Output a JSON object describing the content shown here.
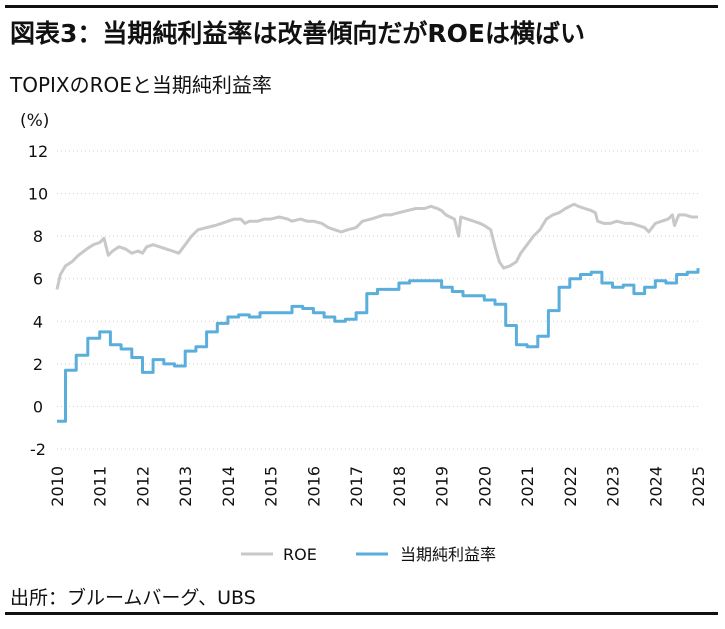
{
  "figure_title": "図表3：当期純利益率は改善傾向だがROEは横ばい",
  "source": "出所：ブルームバーグ、UBS",
  "colors": {
    "roe": "#c8c8c8",
    "margin": "#5aaedc",
    "grid": "#cfcfcf",
    "text": "#111111"
  },
  "chart_data": {
    "type": "line",
    "title": "TOPIXのROEと当期純利益率",
    "ylabel": "(%)",
    "xlabel": "",
    "ylim": [
      -2,
      12
    ],
    "yticks": [
      -2,
      0,
      2,
      4,
      6,
      8,
      10,
      12
    ],
    "xlim": [
      2010,
      2025
    ],
    "xticks": [
      2010,
      2011,
      2012,
      2013,
      2014,
      2015,
      2016,
      2017,
      2018,
      2019,
      2020,
      2021,
      2022,
      2023,
      2024,
      2025
    ],
    "grid": true,
    "legend_position": "bottom-center",
    "series": [
      {
        "name": "ROE",
        "step": false,
        "points": [
          [
            2010.0,
            5.5
          ],
          [
            2010.08,
            6.2
          ],
          [
            2010.2,
            6.6
          ],
          [
            2010.35,
            6.8
          ],
          [
            2010.5,
            7.1
          ],
          [
            2010.7,
            7.4
          ],
          [
            2010.85,
            7.6
          ],
          [
            2011.0,
            7.7
          ],
          [
            2011.1,
            7.9
          ],
          [
            2011.2,
            7.1
          ],
          [
            2011.3,
            7.3
          ],
          [
            2011.45,
            7.5
          ],
          [
            2011.6,
            7.4
          ],
          [
            2011.75,
            7.2
          ],
          [
            2011.9,
            7.3
          ],
          [
            2012.0,
            7.2
          ],
          [
            2012.1,
            7.5
          ],
          [
            2012.25,
            7.6
          ],
          [
            2012.4,
            7.5
          ],
          [
            2012.55,
            7.4
          ],
          [
            2012.7,
            7.3
          ],
          [
            2012.85,
            7.2
          ],
          [
            2013.0,
            7.6
          ],
          [
            2013.15,
            8.0
          ],
          [
            2013.3,
            8.3
          ],
          [
            2013.5,
            8.4
          ],
          [
            2013.7,
            8.5
          ],
          [
            2013.85,
            8.6
          ],
          [
            2014.0,
            8.7
          ],
          [
            2014.15,
            8.8
          ],
          [
            2014.3,
            8.8
          ],
          [
            2014.4,
            8.6
          ],
          [
            2014.5,
            8.7
          ],
          [
            2014.7,
            8.7
          ],
          [
            2014.85,
            8.8
          ],
          [
            2015.0,
            8.8
          ],
          [
            2015.2,
            8.9
          ],
          [
            2015.4,
            8.8
          ],
          [
            2015.5,
            8.7
          ],
          [
            2015.7,
            8.8
          ],
          [
            2015.85,
            8.7
          ],
          [
            2016.0,
            8.7
          ],
          [
            2016.2,
            8.6
          ],
          [
            2016.35,
            8.4
          ],
          [
            2016.5,
            8.3
          ],
          [
            2016.65,
            8.2
          ],
          [
            2016.8,
            8.3
          ],
          [
            2017.0,
            8.4
          ],
          [
            2017.15,
            8.7
          ],
          [
            2017.35,
            8.8
          ],
          [
            2017.5,
            8.9
          ],
          [
            2017.65,
            9.0
          ],
          [
            2017.8,
            9.0
          ],
          [
            2018.0,
            9.1
          ],
          [
            2018.2,
            9.2
          ],
          [
            2018.4,
            9.3
          ],
          [
            2018.6,
            9.3
          ],
          [
            2018.75,
            9.4
          ],
          [
            2018.9,
            9.3
          ],
          [
            2019.0,
            9.2
          ],
          [
            2019.1,
            9.0
          ],
          [
            2019.2,
            8.9
          ],
          [
            2019.3,
            8.8
          ],
          [
            2019.4,
            8.0
          ],
          [
            2019.45,
            8.9
          ],
          [
            2019.6,
            8.8
          ],
          [
            2019.75,
            8.7
          ],
          [
            2019.9,
            8.6
          ],
          [
            2020.0,
            8.5
          ],
          [
            2020.15,
            8.3
          ],
          [
            2020.25,
            7.5
          ],
          [
            2020.35,
            6.8
          ],
          [
            2020.45,
            6.5
          ],
          [
            2020.6,
            6.6
          ],
          [
            2020.75,
            6.8
          ],
          [
            2020.85,
            7.2
          ],
          [
            2021.0,
            7.6
          ],
          [
            2021.15,
            8.0
          ],
          [
            2021.3,
            8.3
          ],
          [
            2021.45,
            8.8
          ],
          [
            2021.6,
            9.0
          ],
          [
            2021.75,
            9.1
          ],
          [
            2021.9,
            9.3
          ],
          [
            2022.0,
            9.4
          ],
          [
            2022.1,
            9.5
          ],
          [
            2022.2,
            9.4
          ],
          [
            2022.35,
            9.3
          ],
          [
            2022.5,
            9.2
          ],
          [
            2022.6,
            9.1
          ],
          [
            2022.65,
            8.7
          ],
          [
            2022.8,
            8.6
          ],
          [
            2022.95,
            8.6
          ],
          [
            2023.1,
            8.7
          ],
          [
            2023.3,
            8.6
          ],
          [
            2023.45,
            8.6
          ],
          [
            2023.6,
            8.5
          ],
          [
            2023.75,
            8.4
          ],
          [
            2023.85,
            8.2
          ],
          [
            2024.0,
            8.6
          ],
          [
            2024.15,
            8.7
          ],
          [
            2024.3,
            8.8
          ],
          [
            2024.4,
            9.0
          ],
          [
            2024.45,
            8.5
          ],
          [
            2024.55,
            9.0
          ],
          [
            2024.7,
            9.0
          ],
          [
            2024.85,
            8.9
          ],
          [
            2025.0,
            8.9
          ]
        ]
      },
      {
        "name": "当期純利益率",
        "step": true,
        "points": [
          [
            2010.0,
            -0.7
          ],
          [
            2010.2,
            1.7
          ],
          [
            2010.45,
            2.4
          ],
          [
            2010.72,
            3.2
          ],
          [
            2011.0,
            3.5
          ],
          [
            2011.25,
            2.9
          ],
          [
            2011.5,
            2.7
          ],
          [
            2011.75,
            2.3
          ],
          [
            2012.0,
            1.6
          ],
          [
            2012.25,
            2.2
          ],
          [
            2012.5,
            2.0
          ],
          [
            2012.75,
            1.9
          ],
          [
            2013.0,
            2.6
          ],
          [
            2013.25,
            2.8
          ],
          [
            2013.5,
            3.5
          ],
          [
            2013.75,
            3.9
          ],
          [
            2014.0,
            4.2
          ],
          [
            2014.25,
            4.3
          ],
          [
            2014.5,
            4.2
          ],
          [
            2014.75,
            4.4
          ],
          [
            2015.0,
            4.4
          ],
          [
            2015.25,
            4.4
          ],
          [
            2015.5,
            4.7
          ],
          [
            2015.75,
            4.6
          ],
          [
            2016.0,
            4.4
          ],
          [
            2016.25,
            4.2
          ],
          [
            2016.5,
            4.0
          ],
          [
            2016.75,
            4.1
          ],
          [
            2017.0,
            4.4
          ],
          [
            2017.25,
            5.3
          ],
          [
            2017.5,
            5.5
          ],
          [
            2017.75,
            5.5
          ],
          [
            2018.0,
            5.8
          ],
          [
            2018.25,
            5.9
          ],
          [
            2018.5,
            5.9
          ],
          [
            2018.75,
            5.9
          ],
          [
            2019.0,
            5.6
          ],
          [
            2019.25,
            5.4
          ],
          [
            2019.5,
            5.2
          ],
          [
            2019.75,
            5.2
          ],
          [
            2020.0,
            5.0
          ],
          [
            2020.25,
            4.8
          ],
          [
            2020.5,
            3.8
          ],
          [
            2020.75,
            2.9
          ],
          [
            2021.0,
            2.8
          ],
          [
            2021.25,
            3.3
          ],
          [
            2021.5,
            4.5
          ],
          [
            2021.75,
            5.6
          ],
          [
            2022.0,
            6.0
          ],
          [
            2022.25,
            6.2
          ],
          [
            2022.5,
            6.3
          ],
          [
            2022.75,
            5.8
          ],
          [
            2023.0,
            5.6
          ],
          [
            2023.25,
            5.7
          ],
          [
            2023.5,
            5.3
          ],
          [
            2023.75,
            5.6
          ],
          [
            2024.0,
            5.9
          ],
          [
            2024.25,
            5.8
          ],
          [
            2024.5,
            6.2
          ],
          [
            2024.75,
            6.3
          ],
          [
            2025.0,
            6.5
          ]
        ]
      }
    ]
  }
}
